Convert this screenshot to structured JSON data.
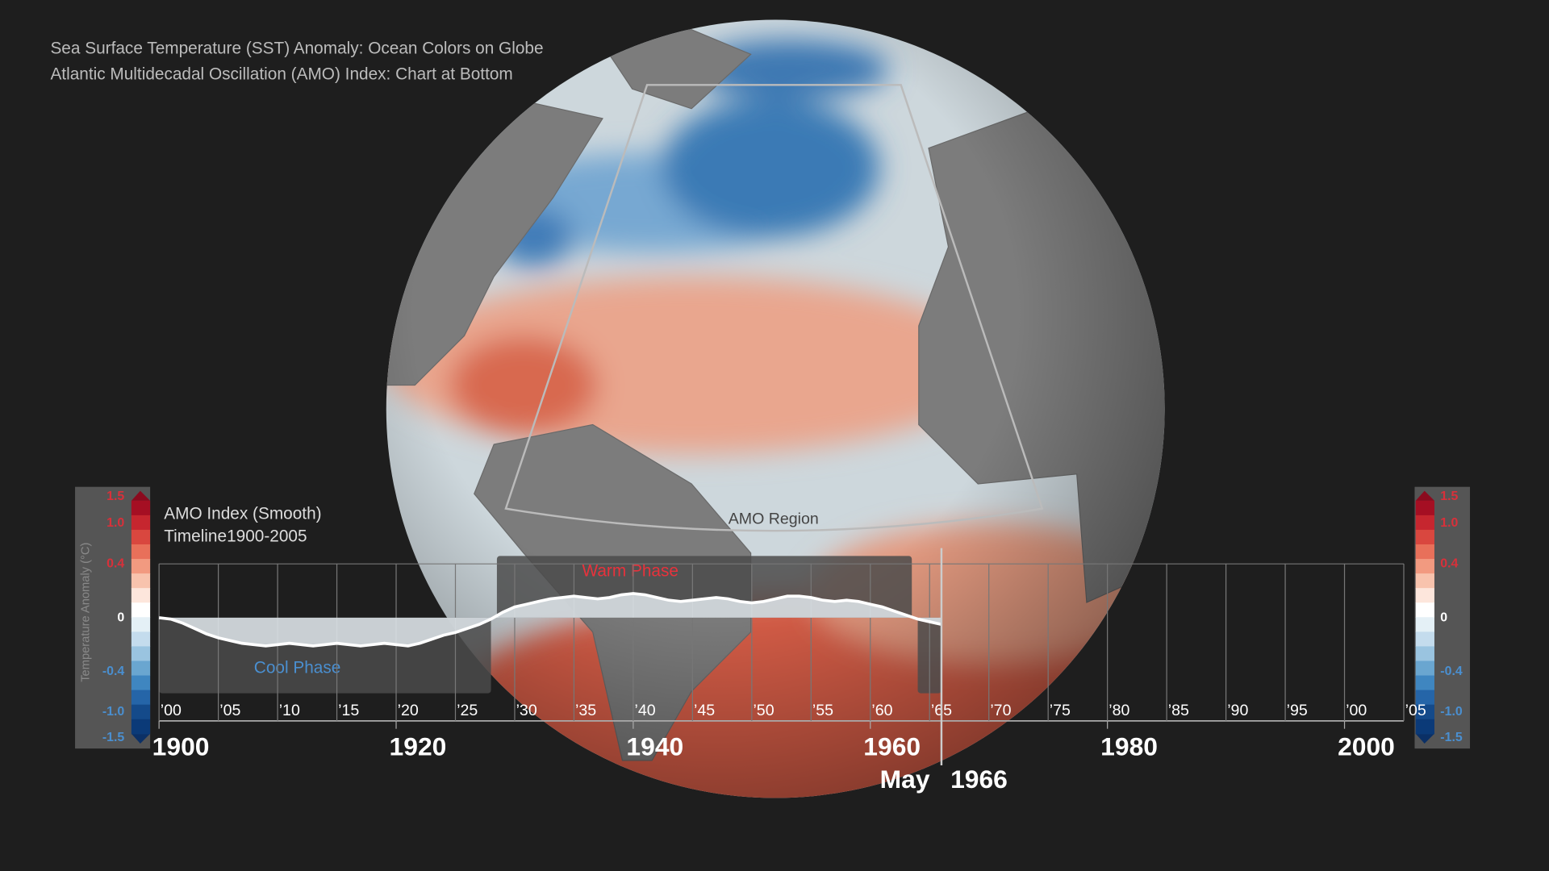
{
  "captions": [
    "Sea Surface Temperature (SST) Anomaly: Ocean Colors on Globe",
    "Atlantic Multidecadal Oscillation (AMO) Index: Chart at Bottom"
  ],
  "region_label": "AMO Region",
  "colorbar": {
    "title": "Temperature Anomaly (°C)",
    "labels": [
      "1.5",
      "1.0",
      "0.4",
      "0",
      "-0.4",
      "-1.0",
      "-1.5"
    ]
  },
  "chart_data": {
    "type": "area",
    "title": "AMO Index (Smooth)",
    "subtitle": "Timeline1900-2005",
    "x": [
      1900,
      1901,
      1902,
      1903,
      1904,
      1905,
      1906,
      1907,
      1908,
      1909,
      1910,
      1911,
      1912,
      1913,
      1914,
      1915,
      1916,
      1917,
      1918,
      1919,
      1920,
      1921,
      1922,
      1923,
      1924,
      1925,
      1926,
      1927,
      1928,
      1929,
      1930,
      1931,
      1932,
      1933,
      1934,
      1935,
      1936,
      1937,
      1938,
      1939,
      1940,
      1941,
      1942,
      1943,
      1944,
      1945,
      1946,
      1947,
      1948,
      1949,
      1950,
      1951,
      1952,
      1953,
      1954,
      1955,
      1956,
      1957,
      1958,
      1959,
      1960,
      1961,
      1962,
      1963,
      1964,
      1965,
      1966
    ],
    "values": [
      0,
      -0.01,
      -0.04,
      -0.08,
      -0.12,
      -0.15,
      -0.17,
      -0.19,
      -0.2,
      -0.21,
      -0.2,
      -0.19,
      -0.2,
      -0.21,
      -0.2,
      -0.19,
      -0.2,
      -0.21,
      -0.2,
      -0.19,
      -0.2,
      -0.21,
      -0.19,
      -0.16,
      -0.13,
      -0.11,
      -0.08,
      -0.05,
      -0.01,
      0.04,
      0.08,
      0.1,
      0.12,
      0.14,
      0.15,
      0.16,
      0.15,
      0.14,
      0.15,
      0.17,
      0.18,
      0.17,
      0.15,
      0.13,
      0.12,
      0.13,
      0.14,
      0.15,
      0.14,
      0.12,
      0.11,
      0.12,
      0.14,
      0.16,
      0.16,
      0.15,
      0.13,
      0.12,
      0.13,
      0.12,
      0.1,
      0.08,
      0.05,
      0.02,
      -0.01,
      -0.03,
      -0.05
    ],
    "color": "#ffffff",
    "xlim": [
      1900,
      2005
    ],
    "ylim": [
      -0.4,
      0.4
    ],
    "xticks": [
      {
        "value": 1900,
        "label": "’00"
      },
      {
        "value": 1905,
        "label": "’05"
      },
      {
        "value": 1910,
        "label": "’10"
      },
      {
        "value": 1915,
        "label": "’15"
      },
      {
        "value": 1920,
        "label": "’20"
      },
      {
        "value": 1925,
        "label": "’25"
      },
      {
        "value": 1930,
        "label": "’30"
      },
      {
        "value": 1935,
        "label": "’35"
      },
      {
        "value": 1940,
        "label": "’40"
      },
      {
        "value": 1945,
        "label": "’45"
      },
      {
        "value": 1950,
        "label": "’50"
      },
      {
        "value": 1955,
        "label": "’55"
      },
      {
        "value": 1960,
        "label": "’60"
      },
      {
        "value": 1965,
        "label": "’65"
      },
      {
        "value": 1970,
        "label": "’70"
      },
      {
        "value": 1975,
        "label": "’75"
      },
      {
        "value": 1980,
        "label": "’80"
      },
      {
        "value": 1985,
        "label": "’85"
      },
      {
        "value": 1990,
        "label": "’90"
      },
      {
        "value": 1995,
        "label": "’95"
      },
      {
        "value": 2000,
        "label": "’00"
      },
      {
        "value": 2005,
        "label": "’05"
      }
    ],
    "xticks_major": [
      1900,
      1920,
      1940,
      1960,
      1980,
      2000
    ],
    "grid": true,
    "phases": [
      {
        "label": "Cool Phase",
        "color": "#4a8fd0",
        "start": 1900,
        "end": 1928
      },
      {
        "label": "Warm Phase",
        "color": "#e8323c",
        "start": 1928.5,
        "end": 1963.5
      },
      {
        "start": 1964,
        "end": 1966
      }
    ],
    "marker": {
      "month": "May",
      "year": 1966
    }
  }
}
